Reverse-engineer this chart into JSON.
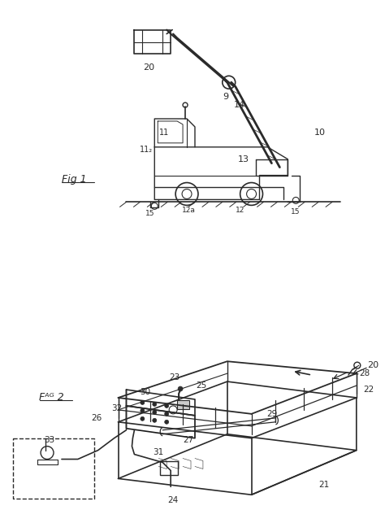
{
  "bg_color": "#ffffff",
  "line_color": "#2a2a2a",
  "fig_width": 4.74,
  "fig_height": 6.27,
  "dpi": 100,
  "labels": {
    "fig1": "Fᴬᴳ 1",
    "fig2": "Fᴬᴳ 2",
    "ref_10": "10",
    "ref_11": "11",
    "ref_12a": "12a",
    "ref_12b": "12",
    "ref_13": "13",
    "ref_14": "14",
    "ref_15a": "15",
    "ref_15b": "15",
    "ref_20_top": "20",
    "ref_20_bottom": "20",
    "ref_21": "21",
    "ref_22": "22",
    "ref_23": "23",
    "ref_24": "24",
    "ref_25": "25",
    "ref_26": "26",
    "ref_27": "27",
    "ref_28": "28",
    "ref_29": "29",
    "ref_30": "30",
    "ref_31": "31",
    "ref_32": "32",
    "ref_33": "33",
    "ref_9": "9",
    "ref_11b": "11"
  }
}
